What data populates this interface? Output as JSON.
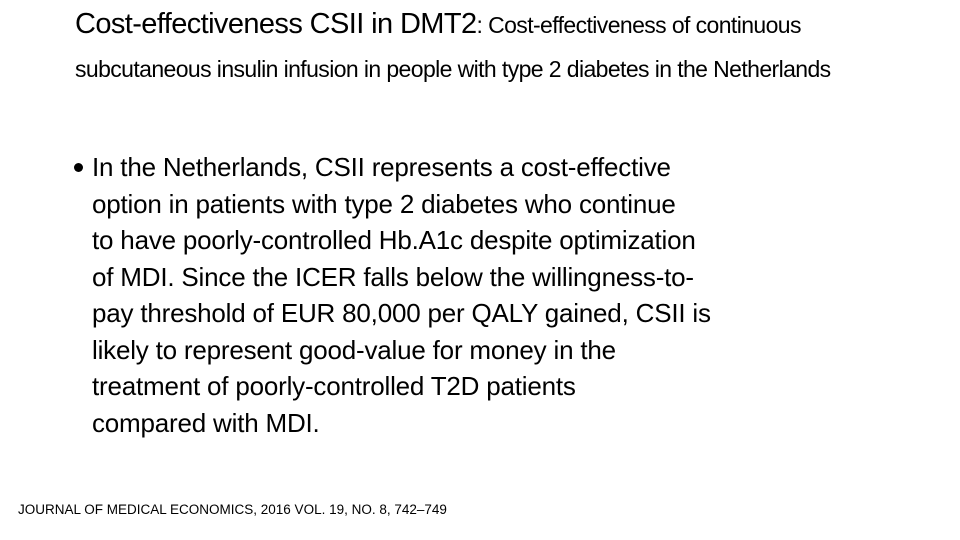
{
  "title": {
    "main": "Cost-effectiveness CSII in DMT2",
    "subtitle": ": Cost-effectiveness of continuous subcutaneous insulin infusion in people with type 2 diabetes in the Netherlands"
  },
  "body": {
    "lines": [
      "In the Netherlands, CSII represents a cost-effective",
      "option in patients with type 2 diabetes who continue",
      "to have poorly-controlled Hb.A1c despite optimization",
      "of MDI. Since the ICER falls below the willingness-to-",
      "pay threshold of EUR 80,000 per QALY gained, CSII is",
      "likely to represent good-value for money in the",
      "treatment of poorly-controlled T2D patients",
      "compared with MDI."
    ]
  },
  "footer": "JOURNAL OF MEDICAL ECONOMICS, 2016 VOL. 19, NO. 8, 742–749"
}
